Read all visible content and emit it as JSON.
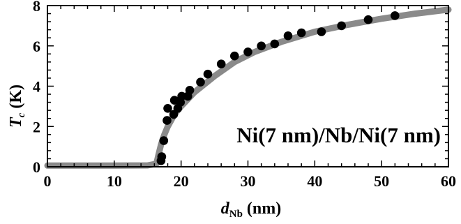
{
  "chart_data": {
    "type": "scatter",
    "title": "",
    "xlabel": {
      "main": "d",
      "sub": "Nb",
      "unit": "(nm)"
    },
    "ylabel": {
      "main": "T",
      "sub": "c",
      "unit": "(K)"
    },
    "xlim": [
      0,
      60
    ],
    "ylim": [
      0,
      8
    ],
    "x_ticks": [
      0,
      10,
      20,
      30,
      40,
      50,
      60
    ],
    "y_ticks": [
      0,
      2,
      4,
      6,
      8
    ],
    "grid": false,
    "annotation": "Ni(7 nm)/Nb/Ni(7 nm)",
    "series": [
      {
        "kind": "points",
        "color": "#000000",
        "x": [
          17.0,
          17.1,
          17.4,
          17.9,
          18.0,
          18.9,
          19.0,
          19.5,
          19.9,
          20.1,
          21.0,
          21.3,
          22.9,
          24.0,
          26.0,
          28.0,
          30.0,
          32.0,
          34.0,
          36.0,
          38.0,
          41.0,
          44.0,
          48.0,
          52.0
        ],
        "y": [
          0.3,
          0.5,
          1.3,
          2.3,
          2.9,
          2.6,
          3.3,
          2.9,
          3.2,
          3.5,
          3.5,
          3.8,
          4.2,
          4.6,
          5.1,
          5.5,
          5.7,
          6.0,
          6.1,
          6.5,
          6.65,
          6.7,
          7.0,
          7.3,
          7.5
        ]
      },
      {
        "kind": "theory-curve",
        "color": "#8a8a8a",
        "x": [
          0,
          5,
          10,
          15,
          16.3,
          16.7,
          17.0,
          17.5,
          18,
          19,
          20,
          22,
          25,
          28,
          31,
          35,
          40,
          45,
          50,
          55,
          60
        ],
        "y": [
          0.06,
          0.06,
          0.06,
          0.07,
          0.15,
          0.7,
          1.1,
          1.6,
          2.0,
          2.6,
          3.0,
          3.7,
          4.5,
          5.2,
          5.7,
          6.2,
          6.7,
          7.05,
          7.35,
          7.6,
          7.8
        ]
      }
    ]
  }
}
